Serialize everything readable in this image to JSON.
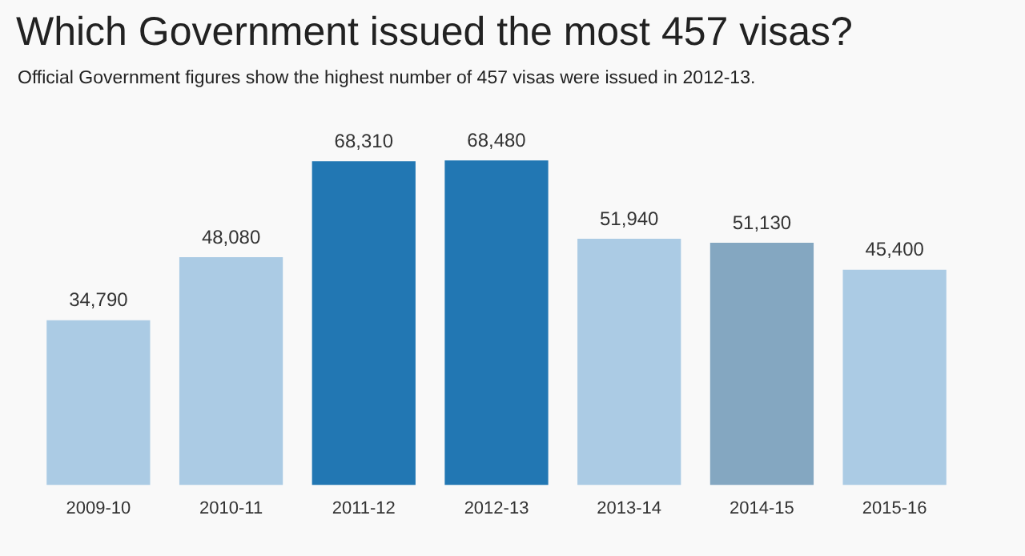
{
  "chart_data": {
    "type": "bar",
    "title": "Which Government issued the most 457 visas?",
    "subtitle": "Official Government figures show the highest number of 457 visas were issued in 2012-13.",
    "categories": [
      "2009-10",
      "2010-11",
      "2011-12",
      "2012-13",
      "2013-14",
      "2014-15",
      "2015-16"
    ],
    "values": [
      34790,
      48080,
      68310,
      68480,
      51940,
      51130,
      45400
    ],
    "colors": [
      "#abcbe4",
      "#abcbe4",
      "#2277b3",
      "#2277b3",
      "#abcbe4",
      "#84a7c1",
      "#abcbe4"
    ],
    "value_labels": [
      "34,790",
      "48,080",
      "68,310",
      "68,480",
      "51,940",
      "51,130",
      "45,400"
    ],
    "relative": false,
    "grid": false,
    "legend": false
  }
}
